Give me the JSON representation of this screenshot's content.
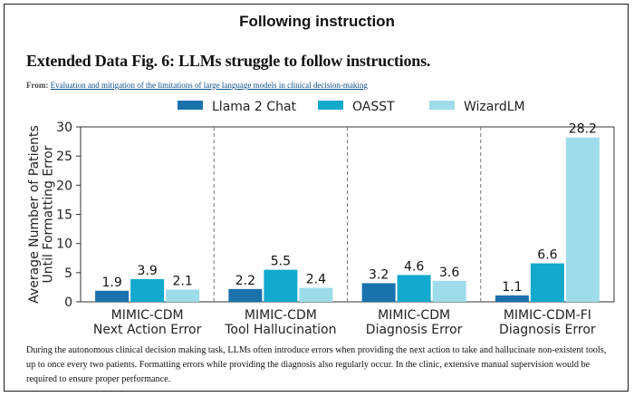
{
  "page": {
    "heading": "Following instruction",
    "figure_title": "Extended Data Fig. 6: LLMs struggle to follow instructions.",
    "from_label": "From:",
    "from_link": "Evaluation and mitigation of the limitations of large language models in clinical decision-making",
    "caption": "During the autonomous clinical decision making task, LLMs often introduce errors when providing the next action to take and hallucinate non-existent tools, up to once every two patients. Formatting errors while providing the diagnosis also regularly occur. In the clinic, extensive manual supervision would be required to ensure proper performance."
  },
  "chart_data": {
    "type": "bar",
    "title": "",
    "ylabel": "Average Number of Patients Until Formatting Error",
    "ylabel_lines": [
      "Average Number of Patients",
      "Until Formatting Error"
    ],
    "xlabel": "",
    "ylim": [
      0,
      30
    ],
    "yticks": [
      0,
      5,
      10,
      15,
      20,
      25,
      30
    ],
    "categories": [
      [
        "MIMIC-CDM",
        "Next Action Error"
      ],
      [
        "MIMIC-CDM",
        "Tool Hallucination"
      ],
      [
        "MIMIC-CDM",
        "Diagnosis Error"
      ],
      [
        "MIMIC-CDM-FI",
        "Diagnosis Error"
      ]
    ],
    "series": [
      {
        "name": "Llama 2 Chat",
        "color": "#1a72ad",
        "values": [
          1.9,
          2.2,
          3.2,
          1.1
        ]
      },
      {
        "name": "OASST",
        "color": "#12a9cc",
        "values": [
          3.9,
          5.5,
          4.6,
          6.6
        ]
      },
      {
        "name": "WizardLM",
        "color": "#9edcea",
        "values": [
          2.1,
          2.4,
          3.6,
          28.2
        ]
      }
    ],
    "grid": false,
    "group_separators": "dashed vertical lines",
    "legend_position": "top"
  }
}
